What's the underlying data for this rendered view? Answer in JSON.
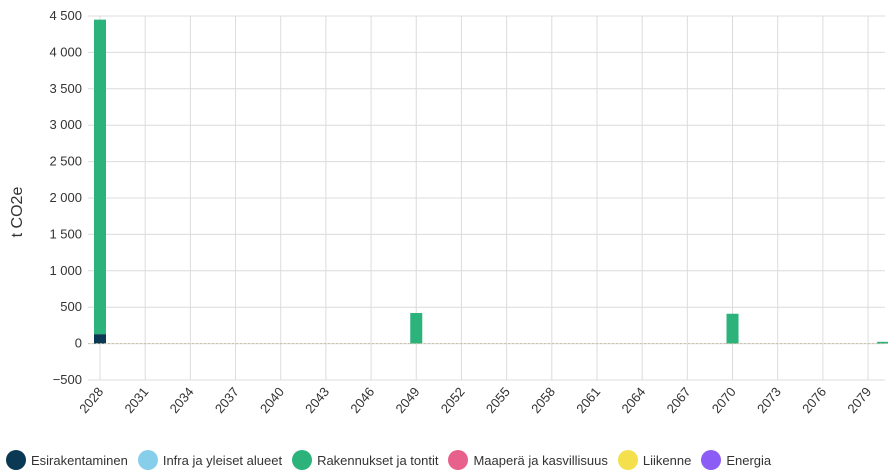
{
  "chart_data": {
    "type": "bar",
    "stacked": true,
    "ylabel": "t CO2e",
    "ylim": [
      -500,
      4500
    ],
    "yticks": [
      {
        "v": 4500,
        "label": "4 500"
      },
      {
        "v": 4000,
        "label": "4 000"
      },
      {
        "v": 3500,
        "label": "3 500"
      },
      {
        "v": 3000,
        "label": "3 000"
      },
      {
        "v": 2500,
        "label": "2 500"
      },
      {
        "v": 2000,
        "label": "2 000"
      },
      {
        "v": 1500,
        "label": "1 500"
      },
      {
        "v": 1000,
        "label": "1 000"
      },
      {
        "v": 500,
        "label": "500"
      },
      {
        "v": 0,
        "label": "0"
      },
      {
        "v": -500,
        "label": "−500"
      }
    ],
    "x_start": 2028,
    "x_end": 2080,
    "x_tick_labels": [
      "2028",
      "2031",
      "2034",
      "2037",
      "2040",
      "2043",
      "2046",
      "2049",
      "2052",
      "2055",
      "2058",
      "2061",
      "2064",
      "2067",
      "2070",
      "2073",
      "2076",
      "2079"
    ],
    "grid": true,
    "legend_position": "bottom",
    "series": [
      {
        "name": "Esirakentaminen",
        "color": "#0b3954",
        "values": {
          "2028": 130
        }
      },
      {
        "name": "Infra ja yleiset alueet",
        "color": "#87ceeb",
        "values": {}
      },
      {
        "name": "Rakennukset ja tontit",
        "color": "#2bb37b",
        "values": {
          "2028": 4320,
          "2049": 420,
          "2070": 410,
          "2080": 25
        }
      },
      {
        "name": "Maaperä ja kasvillisuus",
        "color": "#e8608c",
        "values": {}
      },
      {
        "name": "Liikenne",
        "color": "#f4e04d",
        "values": {}
      },
      {
        "name": "Energia",
        "color": "#8b5cf6",
        "values": {}
      }
    ]
  }
}
